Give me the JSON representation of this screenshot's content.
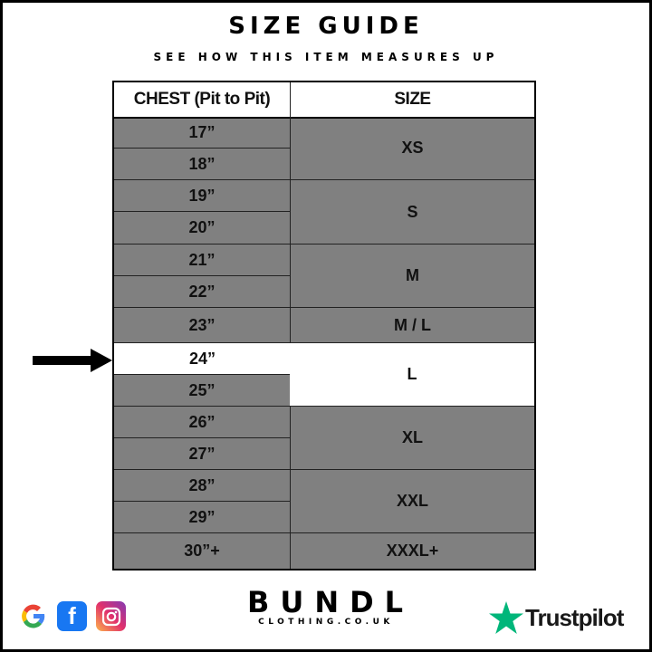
{
  "header": {
    "title": "SIZE GUIDE",
    "subtitle": "SEE HOW THIS ITEM MEASURES UP"
  },
  "table": {
    "headers": [
      "CHEST (Pit to Pit)",
      "SIZE"
    ],
    "chest": [
      "17”",
      "18”",
      "19”",
      "20”",
      "21”",
      "22”",
      "23”",
      "24”",
      "25”",
      "26”",
      "27”",
      "28”",
      "29”",
      "30”+"
    ],
    "sizes": [
      "XS",
      "S",
      "M",
      "M / L",
      "L",
      "XL",
      "XXL",
      "XXXL+"
    ],
    "highlighted_chest": "24”",
    "highlighted_size": "L"
  },
  "colors": {
    "cell": "#808080",
    "highlight": "#ffffff",
    "trustpilot": "#00b67a",
    "facebook": "#1877f2"
  },
  "footer": {
    "brand": "BUNDL",
    "brand_sub": "CLOTHING.CO.UK",
    "trustpilot": "Trustpilot",
    "icons": [
      "google-icon",
      "facebook-icon",
      "instagram-icon"
    ]
  }
}
